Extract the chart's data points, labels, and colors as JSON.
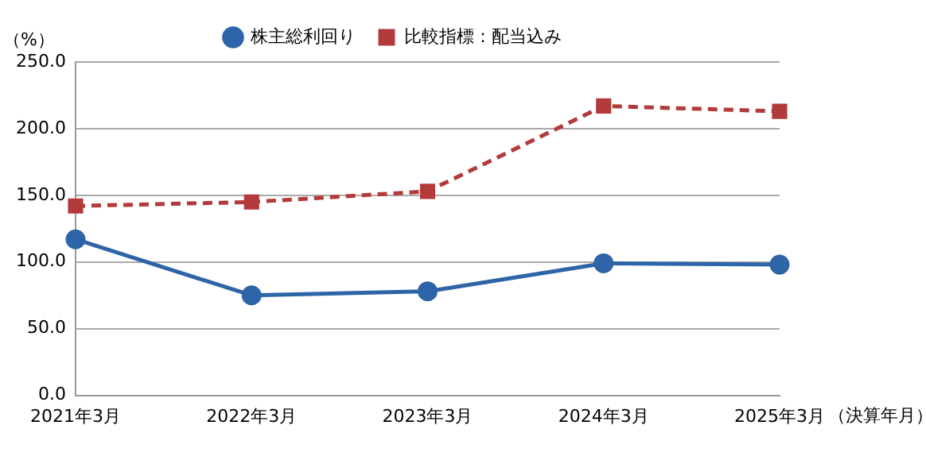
{
  "chart_data": {
    "type": "line",
    "ylabel": "（%）",
    "xlabel": "（決算年月）",
    "categories": [
      "2021年3月",
      "2022年3月",
      "2023年3月",
      "2024年3月",
      "2025年3月"
    ],
    "series": [
      {
        "name": "株主総利回り",
        "color": "#2e64a8",
        "marker": "circle",
        "line_style": "solid",
        "values": [
          117,
          75,
          78,
          99,
          98
        ]
      },
      {
        "name": "比較指標：配当込み",
        "color": "#b33a3a",
        "marker": "square",
        "line_style": "dashed",
        "values": [
          142,
          145,
          153,
          217,
          213
        ]
      }
    ],
    "ylim": [
      0,
      250
    ],
    "yticks": [
      {
        "value": 0,
        "label": "0.0"
      },
      {
        "value": 50,
        "label": "50.0"
      },
      {
        "value": 100,
        "label": "100.0"
      },
      {
        "value": 150,
        "label": "150.0"
      },
      {
        "value": 200,
        "label": "200.0"
      },
      {
        "value": 250,
        "label": "250.0"
      }
    ],
    "grid": "y",
    "legend": "top"
  }
}
